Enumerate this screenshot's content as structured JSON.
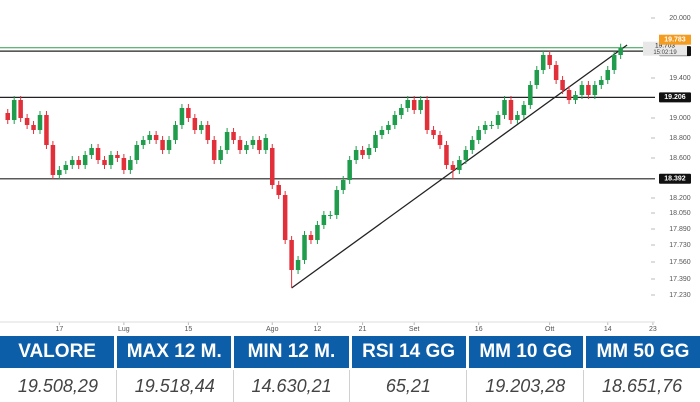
{
  "chart_data": {
    "type": "candlestick",
    "open": [
      19050,
      18980,
      19180,
      19000,
      18930,
      18880,
      19030,
      18730,
      18430,
      18480,
      18530,
      18580,
      18530,
      18630,
      18700,
      18580,
      18530,
      18630,
      18600,
      18480,
      18580,
      18730,
      18780,
      18830,
      18780,
      18680,
      18780,
      18930,
      19100,
      19000,
      18880,
      18930,
      18780,
      18580,
      18680,
      18860,
      18780,
      18680,
      18730,
      18780,
      18680,
      18700,
      18330,
      18230,
      17780,
      17480,
      17580,
      17830,
      17780,
      17930,
      18030,
      18030,
      18280,
      18380,
      18580,
      18680,
      18630,
      18700,
      18830,
      18880,
      18930,
      19030,
      19100,
      19180,
      19080,
      19180,
      18880,
      18830,
      18730,
      18530,
      18480,
      18580,
      18680,
      18780,
      18880,
      18930,
      18930,
      19030,
      19180,
      18980,
      19030,
      19130,
      19330,
      19480,
      19630,
      19530,
      19380,
      19280,
      19180,
      19230,
      19330,
      19230,
      19330,
      19380,
      19480,
      19630
    ],
    "high": [
      19090,
      19220,
      19220,
      19040,
      18970,
      19070,
      19070,
      18770,
      18520,
      18570,
      18620,
      18620,
      18670,
      18740,
      18740,
      18620,
      18670,
      18670,
      18640,
      18620,
      18770,
      18820,
      18870,
      18870,
      18820,
      18820,
      18970,
      19140,
      19140,
      19040,
      18970,
      18970,
      18820,
      18720,
      18900,
      18900,
      18820,
      18770,
      18820,
      18820,
      18840,
      18740,
      18370,
      18270,
      17820,
      17620,
      17870,
      17870,
      17970,
      18070,
      18070,
      18320,
      18420,
      18620,
      18720,
      18720,
      18740,
      18870,
      18920,
      18970,
      19070,
      19140,
      19220,
      19220,
      19220,
      19220,
      18920,
      18870,
      18770,
      18570,
      18620,
      18720,
      18820,
      18920,
      18970,
      18970,
      19070,
      19220,
      19220,
      19070,
      19170,
      19370,
      19520,
      19670,
      19670,
      19570,
      19420,
      19320,
      19270,
      19370,
      19370,
      19370,
      19420,
      19520,
      19670,
      19743
    ],
    "low": [
      18940,
      18940,
      18960,
      18890,
      18840,
      18840,
      18690,
      18390,
      18390,
      18440,
      18490,
      18490,
      18490,
      18590,
      18540,
      18490,
      18490,
      18560,
      18440,
      18440,
      18540,
      18690,
      18740,
      18740,
      18640,
      18640,
      18740,
      18890,
      18960,
      18840,
      18840,
      18740,
      18540,
      18540,
      18640,
      18740,
      18640,
      18640,
      18690,
      18640,
      18640,
      18290,
      18190,
      17740,
      17300,
      17440,
      17540,
      17740,
      17740,
      17890,
      17990,
      17990,
      18240,
      18340,
      18540,
      18590,
      18590,
      18660,
      18790,
      18840,
      18890,
      18990,
      19060,
      19040,
      19040,
      18840,
      18790,
      18690,
      18490,
      18390,
      18440,
      18540,
      18640,
      18740,
      18840,
      18890,
      18890,
      18990,
      18940,
      18940,
      18990,
      19090,
      19290,
      19440,
      19490,
      19340,
      19240,
      19140,
      19140,
      19190,
      19190,
      19190,
      19290,
      19340,
      19440,
      19590
    ],
    "close": [
      18980,
      19180,
      19000,
      18930,
      18880,
      19030,
      18730,
      18430,
      18480,
      18530,
      18580,
      18530,
      18630,
      18700,
      18580,
      18530,
      18630,
      18600,
      18480,
      18580,
      18730,
      18780,
      18830,
      18780,
      18680,
      18780,
      18930,
      19100,
      19000,
      18880,
      18930,
      18780,
      18580,
      18680,
      18860,
      18780,
      18680,
      18730,
      18780,
      18680,
      18800,
      18330,
      18230,
      17780,
      17480,
      17580,
      17830,
      17780,
      17930,
      18030,
      18030,
      18280,
      18380,
      18580,
      18680,
      18630,
      18700,
      18830,
      18880,
      18930,
      19030,
      19100,
      19180,
      19080,
      19180,
      18880,
      18830,
      18730,
      18530,
      18480,
      18580,
      18680,
      18780,
      18880,
      18930,
      18930,
      19030,
      19180,
      18980,
      19030,
      19130,
      19330,
      19480,
      19630,
      19530,
      19380,
      19280,
      19180,
      19230,
      19330,
      19230,
      19330,
      19380,
      19480,
      19630,
      19703
    ],
    "up_color": "#1f9d4c",
    "down_color": "#e2303b",
    "xlim": [
      -1.2,
      107.3
    ],
    "xticks": [
      {
        "value": 8,
        "label": "17"
      },
      {
        "value": 18,
        "label": "Lug"
      },
      {
        "value": 28,
        "label": "15"
      },
      {
        "value": 41,
        "label": "Ago"
      },
      {
        "value": 48,
        "label": "12"
      },
      {
        "value": 55,
        "label": "21"
      },
      {
        "value": 63,
        "label": "Set"
      },
      {
        "value": 73,
        "label": "16"
      },
      {
        "value": 84,
        "label": "Ott"
      },
      {
        "value": 93,
        "label": "14"
      },
      {
        "value": 100,
        "label": "23"
      }
    ],
    "ylim": [
      16960,
      20180
    ],
    "yticks": [
      {
        "value": 20000,
        "label": "20.000"
      },
      {
        "value": 19400,
        "label": "19.400"
      },
      {
        "value": 19000,
        "label": "19.000"
      },
      {
        "value": 18800,
        "label": "18.800"
      },
      {
        "value": 18600,
        "label": "18.600"
      },
      {
        "value": 18200,
        "label": "18.200"
      },
      {
        "value": 18050,
        "label": "18.050"
      },
      {
        "value": 17890,
        "label": "17.890"
      },
      {
        "value": 17730,
        "label": "17.730"
      },
      {
        "value": 17560,
        "label": "17.560"
      },
      {
        "value": 17390,
        "label": "17.390"
      },
      {
        "value": 17230,
        "label": "17.230"
      }
    ],
    "levels": [
      {
        "value": 19669,
        "label": "19.669"
      },
      {
        "value": 19206,
        "label": "19.206"
      },
      {
        "value": 18392,
        "label": "18.392"
      }
    ],
    "last_price": {
      "value": 19703,
      "label": "19.703",
      "time": "15:02:19"
    },
    "alert": {
      "value": 19783,
      "label": "19.783"
    },
    "trendline": {
      "x": [
        44,
        96
      ],
      "y": [
        17300,
        19730
      ]
    }
  },
  "table": {
    "headers": [
      "VALORE",
      "MAX 12 M.",
      "MIN 12 M.",
      "RSI 14 GG",
      "MM 10 GG",
      "MM 50 GG"
    ],
    "values": [
      "19.508,29",
      "19.518,44",
      "14.630,21",
      "65,21",
      "19.203,28",
      "18.651,76"
    ]
  }
}
